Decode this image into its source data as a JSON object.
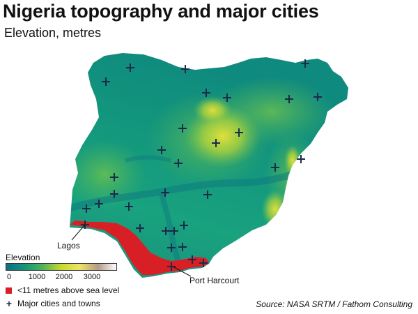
{
  "title": "Nigeria topography and major cities",
  "subtitle": "Elevation, metres",
  "labels": {
    "lagos": "Lagos",
    "port_harcourt": "Port Harcourt"
  },
  "legend": {
    "title": "Elevation",
    "ticks": [
      "0",
      "1000",
      "2000",
      "3000"
    ],
    "colors": [
      "#0b6f82",
      "#12967c",
      "#4fb45b",
      "#c9d92a",
      "#efe36a",
      "#b59a86",
      "#ffffff"
    ],
    "lowland_label": "<11 metres above sea level",
    "lowland_color": "#d91f26",
    "cities_label": "Major cities and towns",
    "cities_color": "#1b2a4a"
  },
  "source": "Source: NASA SRTM / Fathom Consulting"
}
